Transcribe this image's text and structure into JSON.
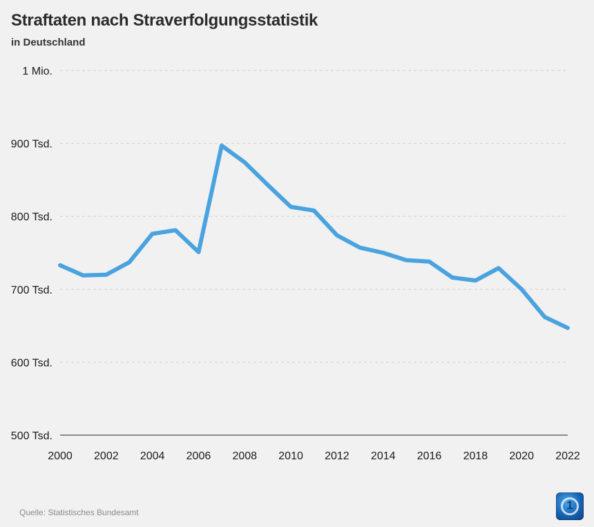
{
  "header": {
    "title": "Straftaten nach Straverfolgungsstatistik",
    "subtitle": "in Deutschland"
  },
  "footer": {
    "source": "Quelle: Statistisches Bundesamt",
    "logo_icon": "tagesschau-logo-icon"
  },
  "colors": {
    "line": "#4aa3df",
    "background": "#f1f1f1"
  },
  "chart_data": {
    "type": "line",
    "title": "Straftaten nach Straverfolgungsstatistik",
    "subtitle": "in Deutschland",
    "xlabel": "",
    "ylabel": "",
    "x": [
      2000,
      2001,
      2002,
      2003,
      2004,
      2005,
      2006,
      2007,
      2008,
      2009,
      2010,
      2011,
      2012,
      2013,
      2014,
      2015,
      2016,
      2017,
      2018,
      2019,
      2020,
      2021,
      2022
    ],
    "series": [
      {
        "values": [
          733000,
          719000,
          720000,
          737000,
          776000,
          781000,
          751000,
          897000,
          874000,
          843000,
          813000,
          808000,
          774000,
          757000,
          750000,
          740000,
          738000,
          716000,
          712000,
          729000,
          700000,
          662000,
          647000
        ]
      }
    ],
    "ylim": [
      500000,
      1000000
    ],
    "xlim": [
      2000,
      2022
    ],
    "y_ticks": [
      500000,
      600000,
      700000,
      800000,
      900000,
      1000000
    ],
    "y_tick_labels": [
      "500 Tsd.",
      "600 Tsd.",
      "700 Tsd.",
      "800 Tsd.",
      "900 Tsd.",
      "1 Mio."
    ],
    "x_ticks": [
      2000,
      2002,
      2004,
      2006,
      2008,
      2010,
      2012,
      2014,
      2016,
      2018,
      2020,
      2022
    ],
    "x_tick_labels": [
      "2000",
      "2002",
      "2004",
      "2006",
      "2008",
      "2010",
      "2012",
      "2014",
      "2016",
      "2018",
      "2020",
      "2022"
    ],
    "grid": true,
    "legend": "none"
  }
}
